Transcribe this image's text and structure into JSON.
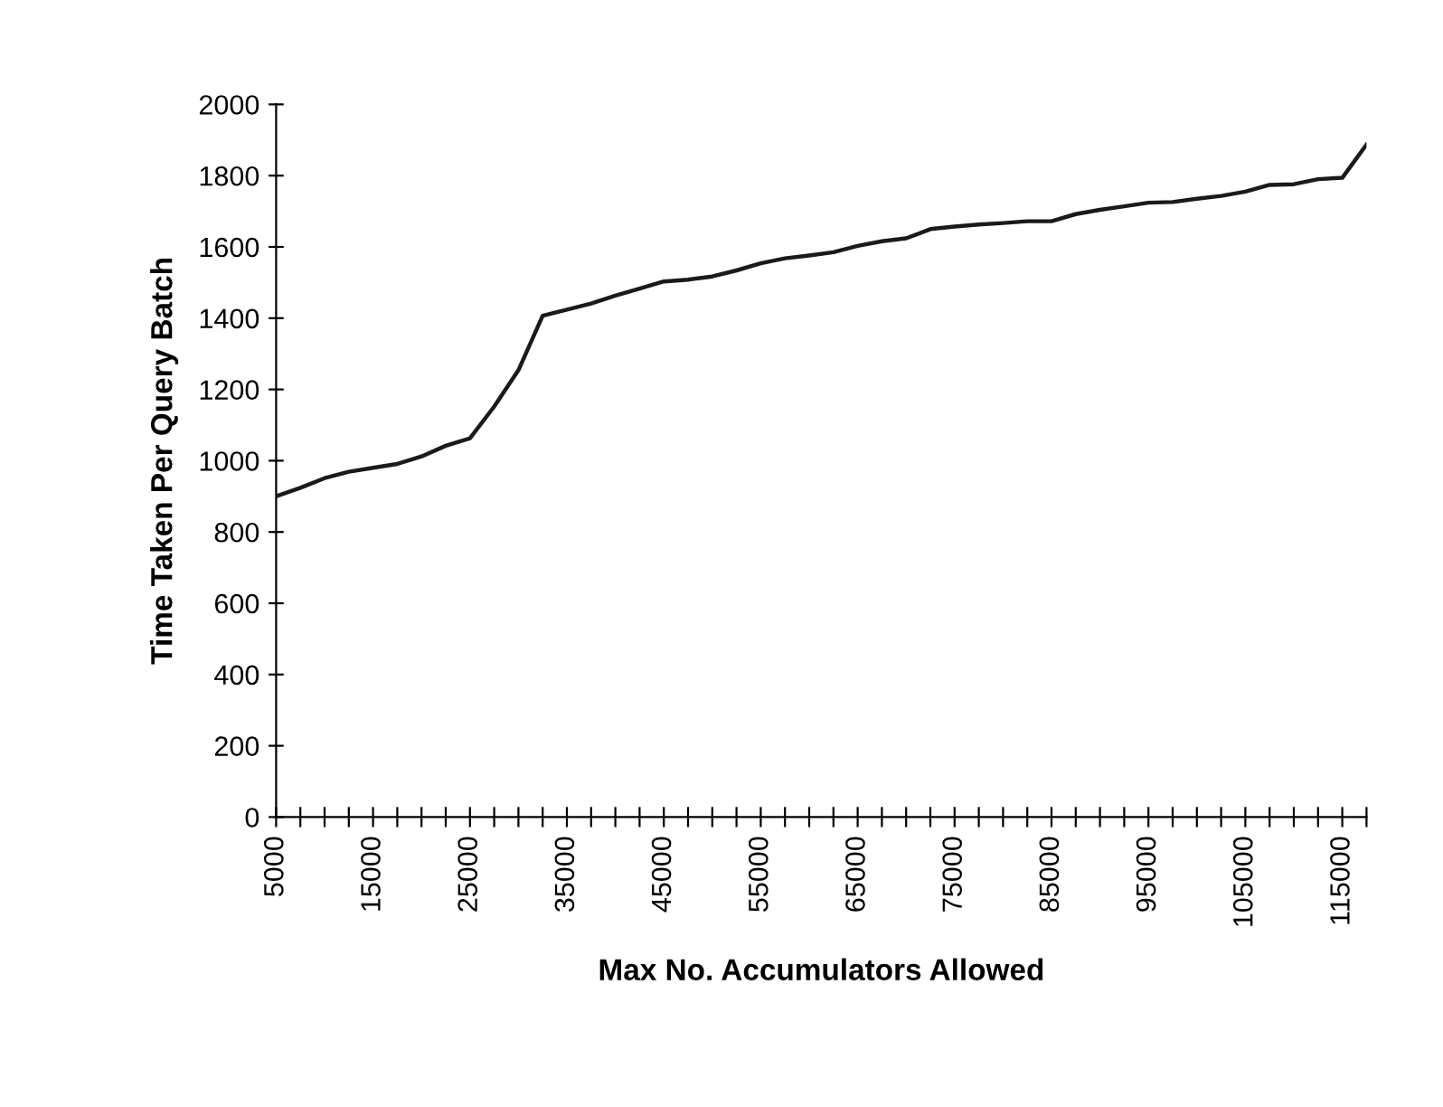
{
  "chart_data": {
    "type": "line",
    "xlabel": "Max No. Accumulators Allowed",
    "ylabel": "Time Taken Per Query Batch",
    "categories": [
      "5000",
      null,
      null,
      null,
      "15000",
      null,
      null,
      null,
      "25000",
      null,
      null,
      null,
      "35000",
      null,
      null,
      null,
      "45000",
      null,
      null,
      null,
      "55000",
      null,
      null,
      null,
      "65000",
      null,
      null,
      null,
      "75000",
      null,
      null,
      null,
      "85000",
      null,
      null,
      null,
      "95000",
      null,
      null,
      null,
      "105000",
      null,
      null,
      null,
      "115000",
      null
    ],
    "series": [
      {
        "color": "#1a1a1a",
        "values": [
          900,
          924,
          951,
          969,
          980,
          991,
          1012,
          1042,
          1063,
          1152,
          1254,
          1407,
          1424,
          1441,
          1463,
          1483,
          1503,
          1508,
          1517,
          1534,
          1554,
          1568,
          1576,
          1585,
          1603,
          1616,
          1624,
          1650,
          1657,
          1663,
          1667,
          1672,
          1672,
          1692,
          1704,
          1714,
          1724,
          1726,
          1735,
          1743,
          1755,
          1774,
          1776,
          1790,
          1794,
          1887
        ]
      }
    ],
    "ylim": [
      0,
      2000
    ],
    "yticks": [
      0,
      200,
      400,
      600,
      800,
      1000,
      1200,
      1400,
      1600,
      1800,
      2000
    ],
    "grid": false,
    "legend": false,
    "marker": "none",
    "line_style": "solid"
  }
}
